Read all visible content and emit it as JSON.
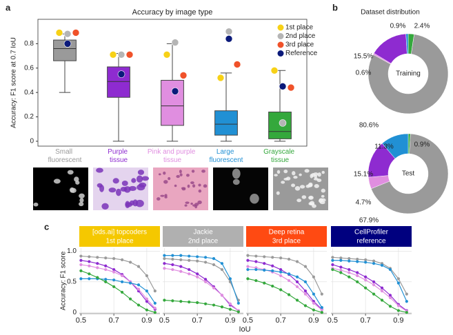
{
  "chart_data": [
    {
      "type": "box",
      "panel_label": "a",
      "title": "Accuracy by image type",
      "y_label": "Accuracy: F1 score at 0.7 IoU",
      "categories": [
        "Small fluorescent",
        "Purple tissue",
        "Pink and purple tissue",
        "Large fluorescent",
        "Grayscale tissue"
      ],
      "colors": [
        "#9a9a9a",
        "#8e2bd0",
        "#e08ee0",
        "#2190d4",
        "#34a83c"
      ],
      "boxes": [
        {
          "min": 0.4,
          "q1": 0.66,
          "median": 0.76,
          "q3": 0.83,
          "max": 0.88
        },
        {
          "min": 0,
          "q1": 0.36,
          "median": 0.49,
          "q3": 0.61,
          "max": 0.72
        },
        {
          "min": 0,
          "q1": 0.13,
          "median": 0.29,
          "q3": 0.5,
          "max": 0.8
        },
        {
          "min": 0,
          "q1": 0.05,
          "median": 0.14,
          "q3": 0.25,
          "max": 0.56
        },
        {
          "min": 0,
          "q1": 0.02,
          "median": 0.08,
          "q3": 0.24,
          "max": 0.58
        }
      ],
      "markers": [
        {
          "name": "1st place",
          "color": "#f7d117",
          "values": [
            0.89,
            0.71,
            0.71,
            0.52,
            0.58
          ]
        },
        {
          "name": "2nd place",
          "color": "#b5b5b5",
          "values": [
            0.88,
            0.71,
            0.81,
            0.9,
            0.15
          ]
        },
        {
          "name": "3rd place",
          "color": "#f0522a",
          "values": [
            0.89,
            0.71,
            0.54,
            0.63,
            0.44
          ]
        },
        {
          "name": "Reference",
          "color": "#0b1a7a",
          "values": [
            0.8,
            0.55,
            0.41,
            0.84,
            0.45
          ]
        }
      ],
      "ylim": [
        -0.04,
        1.0
      ],
      "yticks": [
        0,
        0.2,
        0.4,
        0.6,
        0.8
      ],
      "legend": "upper right"
    },
    {
      "type": "donut",
      "panel_label": "b",
      "title": "Dataset distribution",
      "center_label": "Training",
      "colors": [
        "#34a83c",
        "#9a9a9a",
        "#e08ee0",
        "#8e2bd0",
        "#2190d4"
      ],
      "values": [
        2.4,
        80.6,
        0.6,
        15.5,
        0.9
      ],
      "value_labels": [
        "2.4%",
        "80.6%",
        "0.6%",
        "15.5%",
        "0.9%"
      ]
    },
    {
      "type": "donut",
      "center_label": "Test",
      "colors": [
        "#34a83c",
        "#9a9a9a",
        "#e08ee0",
        "#8e2bd0",
        "#2190d4"
      ],
      "values": [
        0.9,
        67.9,
        4.7,
        15.1,
        11.3
      ],
      "value_labels": [
        "0.9%",
        "67.9%",
        "4.7%",
        "15.1%",
        "11.3%"
      ]
    },
    {
      "type": "line",
      "panel_label": "c",
      "title": "[ods.ai] topcoders",
      "subtitle": "1st place",
      "header_color": "#f5c800",
      "y_label": "Accuracy: F1 score",
      "x_label": "IoU",
      "x": [
        0.5,
        0.55,
        0.6,
        0.65,
        0.7,
        0.75,
        0.8,
        0.85,
        0.9,
        0.95
      ],
      "series": [
        {
          "color": "#9a9a9a",
          "values": [
            0.92,
            0.91,
            0.9,
            0.89,
            0.88,
            0.86,
            0.82,
            0.75,
            0.6,
            0.35
          ]
        },
        {
          "color": "#8e2bd0",
          "values": [
            0.85,
            0.83,
            0.8,
            0.76,
            0.7,
            0.62,
            0.5,
            0.35,
            0.18,
            0.05
          ]
        },
        {
          "color": "#e08ee0",
          "values": [
            0.78,
            0.76,
            0.73,
            0.7,
            0.66,
            0.6,
            0.5,
            0.38,
            0.22,
            0.07
          ]
        },
        {
          "color": "#2190d4",
          "values": [
            0.55,
            0.55,
            0.55,
            0.54,
            0.53,
            0.5,
            0.48,
            0.45,
            0.35,
            0.15
          ]
        },
        {
          "color": "#34a83c",
          "values": [
            0.68,
            0.63,
            0.57,
            0.5,
            0.42,
            0.33,
            0.22,
            0.12,
            0.04,
            0.0
          ]
        }
      ],
      "xlim": [
        0.49,
        0.98
      ],
      "ylim": [
        -0.02,
        1.05
      ],
      "xticks": [
        0.5,
        0.7,
        0.9
      ],
      "yticks": [
        0,
        0.5,
        {
          "value": 1,
          "label": "1.0"
        }
      ],
      "grid": true
    },
    {
      "type": "line",
      "title": "Jackie",
      "subtitle": "2nd place",
      "header_color": "#b0b0b0",
      "x": [
        0.5,
        0.55,
        0.6,
        0.65,
        0.7,
        0.75,
        0.8,
        0.85,
        0.9,
        0.95
      ],
      "series": [
        {
          "color": "#9a9a9a",
          "values": [
            0.88,
            0.87,
            0.86,
            0.85,
            0.84,
            0.82,
            0.78,
            0.7,
            0.5,
            0.2
          ]
        },
        {
          "color": "#8e2bd0",
          "values": [
            0.8,
            0.78,
            0.75,
            0.7,
            0.63,
            0.54,
            0.42,
            0.28,
            0.12,
            0.03
          ]
        },
        {
          "color": "#e08ee0",
          "values": [
            0.72,
            0.7,
            0.67,
            0.63,
            0.58,
            0.5,
            0.4,
            0.28,
            0.14,
            0.03
          ]
        },
        {
          "color": "#2190d4",
          "values": [
            0.93,
            0.93,
            0.93,
            0.92,
            0.91,
            0.9,
            0.88,
            0.8,
            0.55,
            0.15
          ]
        },
        {
          "color": "#34a83c",
          "values": [
            0.2,
            0.19,
            0.18,
            0.17,
            0.16,
            0.14,
            0.12,
            0.09,
            0.05,
            0.01
          ]
        }
      ],
      "xlim": [
        0.49,
        0.98
      ],
      "ylim": [
        -0.02,
        1.05
      ],
      "xticks": [
        0.5,
        0.7,
        0.9
      ],
      "grid": true
    },
    {
      "type": "line",
      "title": "Deep retina",
      "subtitle": "3rd place",
      "header_color": "#ff4a12",
      "x": [
        0.5,
        0.55,
        0.6,
        0.65,
        0.7,
        0.75,
        0.8,
        0.85,
        0.9,
        0.95
      ],
      "series": [
        {
          "color": "#9a9a9a",
          "values": [
            0.93,
            0.92,
            0.91,
            0.9,
            0.89,
            0.87,
            0.83,
            0.75,
            0.58,
            0.3
          ]
        },
        {
          "color": "#8e2bd0",
          "values": [
            0.85,
            0.83,
            0.8,
            0.76,
            0.7,
            0.62,
            0.5,
            0.35,
            0.18,
            0.05
          ]
        },
        {
          "color": "#e08ee0",
          "values": [
            0.75,
            0.73,
            0.7,
            0.66,
            0.6,
            0.52,
            0.42,
            0.3,
            0.15,
            0.04
          ]
        },
        {
          "color": "#2190d4",
          "values": [
            0.7,
            0.7,
            0.69,
            0.68,
            0.66,
            0.63,
            0.58,
            0.5,
            0.3,
            0.08
          ]
        },
        {
          "color": "#34a83c",
          "values": [
            0.55,
            0.52,
            0.48,
            0.43,
            0.37,
            0.29,
            0.2,
            0.11,
            0.04,
            0.0
          ]
        }
      ],
      "xlim": [
        0.49,
        0.98
      ],
      "ylim": [
        -0.02,
        1.05
      ],
      "xticks": [
        0.5,
        0.7,
        0.9
      ],
      "grid": true
    },
    {
      "type": "line",
      "title": "CellProfiler",
      "subtitle": "reference",
      "header_color": "#00007f",
      "x": [
        0.5,
        0.55,
        0.6,
        0.65,
        0.7,
        0.75,
        0.8,
        0.85,
        0.9,
        0.95
      ],
      "series": [
        {
          "color": "#9a9a9a",
          "values": [
            0.9,
            0.89,
            0.88,
            0.87,
            0.86,
            0.84,
            0.8,
            0.72,
            0.55,
            0.3
          ]
        },
        {
          "color": "#8e2bd0",
          "values": [
            0.78,
            0.74,
            0.7,
            0.65,
            0.58,
            0.5,
            0.4,
            0.28,
            0.13,
            0.03
          ]
        },
        {
          "color": "#e08ee0",
          "values": [
            0.72,
            0.69,
            0.65,
            0.6,
            0.53,
            0.45,
            0.35,
            0.24,
            0.11,
            0.02
          ]
        },
        {
          "color": "#2190d4",
          "values": [
            0.85,
            0.85,
            0.84,
            0.83,
            0.82,
            0.8,
            0.77,
            0.7,
            0.48,
            0.18
          ]
        },
        {
          "color": "#34a83c",
          "values": [
            0.7,
            0.65,
            0.58,
            0.5,
            0.4,
            0.3,
            0.2,
            0.1,
            0.03,
            0.0
          ]
        }
      ],
      "xlim": [
        0.49,
        0.98
      ],
      "ylim": [
        -0.02,
        1.05
      ],
      "xticks": [
        0.5,
        0.7,
        0.9
      ],
      "grid": true
    }
  ]
}
